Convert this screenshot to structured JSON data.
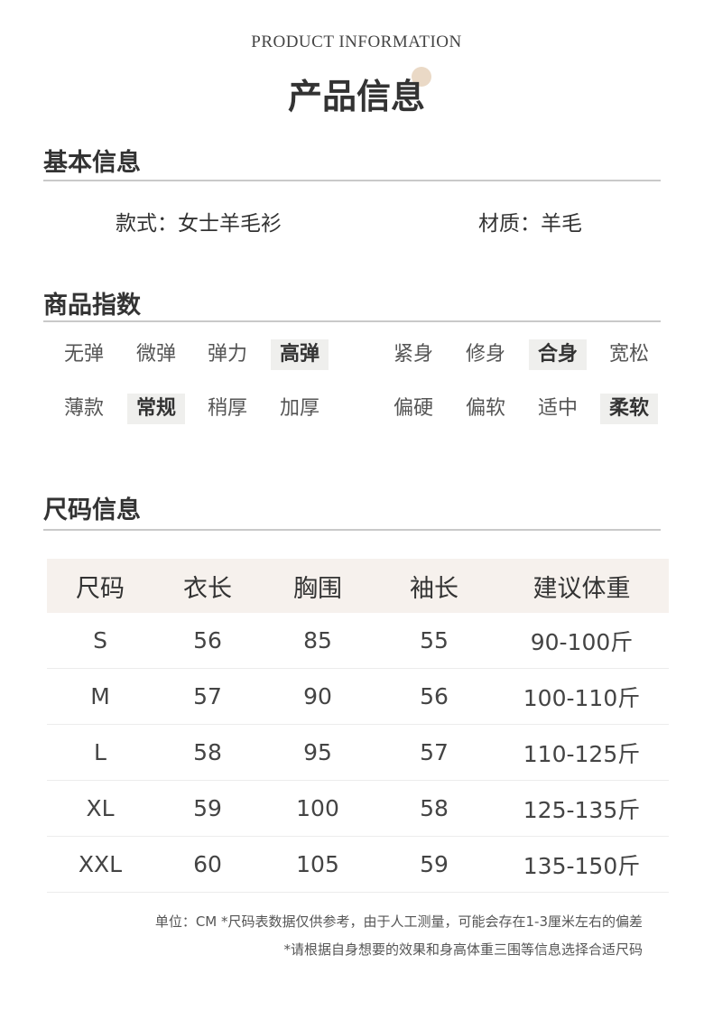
{
  "header": {
    "subtitle_en": "PRODUCT INFORMATION",
    "title": "产品信息"
  },
  "basic": {
    "title": "基本信息",
    "style": "款式：女士羊毛衫",
    "material": "材质：羊毛"
  },
  "index": {
    "title": "商品指数",
    "rows": [
      [
        {
          "label": "无弹",
          "selected": false
        },
        {
          "label": "微弹",
          "selected": false
        },
        {
          "label": "弹力",
          "selected": false
        },
        {
          "label": "高弹",
          "selected": true
        },
        {
          "label": "紧身",
          "selected": false
        },
        {
          "label": "修身",
          "selected": false
        },
        {
          "label": "合身",
          "selected": true
        },
        {
          "label": "宽松",
          "selected": false
        }
      ],
      [
        {
          "label": "薄款",
          "selected": false
        },
        {
          "label": "常规",
          "selected": true
        },
        {
          "label": "稍厚",
          "selected": false
        },
        {
          "label": "加厚",
          "selected": false
        },
        {
          "label": "偏硬",
          "selected": false
        },
        {
          "label": "偏软",
          "selected": false
        },
        {
          "label": "适中",
          "selected": false
        },
        {
          "label": "柔软",
          "selected": true
        }
      ]
    ]
  },
  "size": {
    "title": "尺码信息",
    "headers": [
      "尺码",
      "衣长",
      "胸围",
      "袖长",
      "建议体重"
    ],
    "rows": [
      [
        "S",
        "56",
        "85",
        "55",
        "90-100斤"
      ],
      [
        "M",
        "57",
        "90",
        "56",
        "100-110斤"
      ],
      [
        "L",
        "58",
        "95",
        "57",
        "110-125斤"
      ],
      [
        "XL",
        "59",
        "100",
        "58",
        "125-135斤"
      ],
      [
        "XXL",
        "60",
        "105",
        "59",
        "135-150斤"
      ]
    ],
    "note1": "单位：CM   *尺码表数据仅供参考，由于人工测量，可能会存在1-3厘米左右的偏差",
    "note2": "*请根据自身想要的效果和身高体重三围等信息选择合适尺码"
  }
}
